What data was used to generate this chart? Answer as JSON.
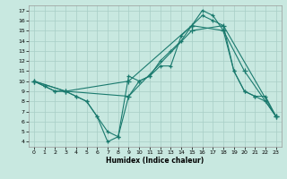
{
  "xlabel": "Humidex (Indice chaleur)",
  "bg_color": "#c8e8e0",
  "line_color": "#1a7a6e",
  "grid_color": "#a8cec6",
  "xlim": [
    -0.5,
    23.5
  ],
  "ylim": [
    3.5,
    17.5
  ],
  "xticks": [
    0,
    1,
    2,
    3,
    4,
    5,
    6,
    7,
    8,
    9,
    10,
    11,
    12,
    13,
    14,
    15,
    16,
    17,
    18,
    19,
    20,
    21,
    22,
    23
  ],
  "yticks": [
    4,
    5,
    6,
    7,
    8,
    9,
    10,
    11,
    12,
    13,
    14,
    15,
    16,
    17
  ],
  "line1_x": [
    0,
    1,
    2,
    3,
    4,
    5,
    6,
    7,
    8,
    9,
    10,
    11,
    12,
    13,
    14,
    15,
    16,
    17,
    18,
    19,
    20,
    21,
    22,
    23
  ],
  "line1_y": [
    10,
    9.5,
    9,
    9,
    8.5,
    8,
    6.5,
    4,
    4.5,
    10.5,
    10,
    10.5,
    11.5,
    11.5,
    14.5,
    15.5,
    17,
    16.5,
    15,
    11,
    9,
    8.5,
    8.5,
    6.5
  ],
  "line2_x": [
    0,
    1,
    2,
    3,
    4,
    5,
    6,
    7,
    8,
    9,
    10,
    11,
    12,
    13,
    14,
    15,
    16,
    17,
    18,
    19,
    20,
    21,
    22,
    23
  ],
  "line2_y": [
    10,
    9.5,
    9,
    9,
    8.5,
    8,
    6.5,
    5,
    4.5,
    8.5,
    10,
    10.5,
    12,
    13,
    14,
    15.5,
    16.5,
    16,
    15.5,
    11,
    9,
    8.5,
    8,
    6.5
  ],
  "line3_x": [
    0,
    3,
    9,
    15,
    18,
    20,
    23
  ],
  "line3_y": [
    10,
    9,
    10,
    15.5,
    15,
    11,
    6.5
  ],
  "line4_x": [
    0,
    3,
    9,
    15,
    18,
    23
  ],
  "line4_y": [
    10,
    9,
    8.5,
    15,
    15.5,
    6.5
  ]
}
